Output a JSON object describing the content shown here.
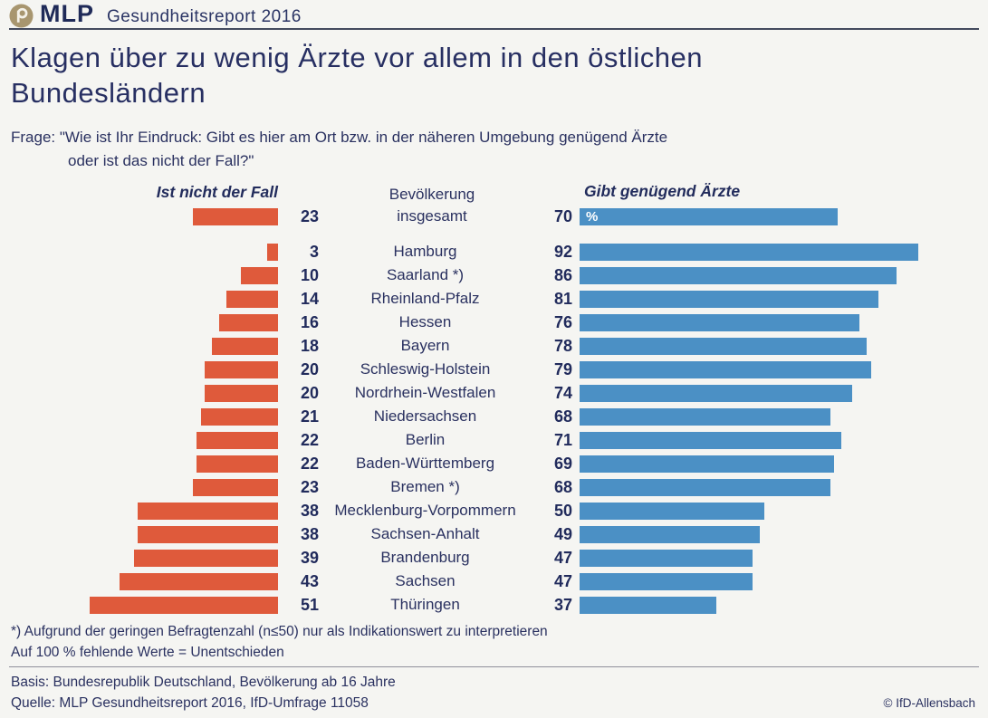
{
  "header": {
    "brand": "MLP",
    "report": "Gesundheitsreport 2016"
  },
  "title": {
    "lines": [
      "Klagen über zu wenig Ärzte vor allem in den östlichen",
      "Bundesländern"
    ]
  },
  "question": {
    "line1": "Frage: \"Wie ist Ihr Eindruck: Gibt es hier am Ort bzw. in der näheren Umgebung genügend Ärzte",
    "line2": "oder ist das nicht der Fall?\""
  },
  "chart_data": {
    "type": "bar",
    "orientation": "horizontal-diverging",
    "unit": "%",
    "xlim": [
      0,
      100
    ],
    "categories": [
      "Bevölkerung insgesamt",
      "Hamburg",
      "Saarland *)",
      "Rheinland-Pfalz",
      "Hessen",
      "Bayern",
      "Schleswig-Holstein",
      "Nordrhein-Westfalen",
      "Niedersachsen",
      "Berlin",
      "Baden-Württemberg",
      "Bremen *)",
      "Mecklenburg-Vorpommern",
      "Sachsen-Anhalt",
      "Brandenburg",
      "Sachsen",
      "Thüringen"
    ],
    "series": [
      {
        "name": "Ist nicht der Fall",
        "color": "#df5a3b",
        "values": [
          23,
          3,
          10,
          14,
          16,
          18,
          20,
          20,
          21,
          22,
          22,
          23,
          38,
          38,
          39,
          43,
          51
        ]
      },
      {
        "name": "Gibt genügend Ärzte",
        "color": "#4b90c5",
        "values": [
          70,
          92,
          86,
          81,
          76,
          78,
          79,
          74,
          68,
          71,
          69,
          68,
          50,
          49,
          47,
          47,
          37
        ]
      }
    ],
    "center_label_lines": [
      "Bevölkerung",
      "insgesamt"
    ]
  },
  "footnotes": [
    "*) Aufgrund der geringen Befragtenzahl (n≤50) nur als Indikationswert zu interpretieren",
    "Auf 100 % fehlende Werte = Unentschieden"
  ],
  "basis": "Basis: Bundesrepublik Deutschland, Bevölkerung ab 16 Jahre",
  "quelle": "Quelle: MLP Gesundheitsreport 2016, IfD-Umfrage 11058",
  "copyright": "© IfD-Allensbach"
}
